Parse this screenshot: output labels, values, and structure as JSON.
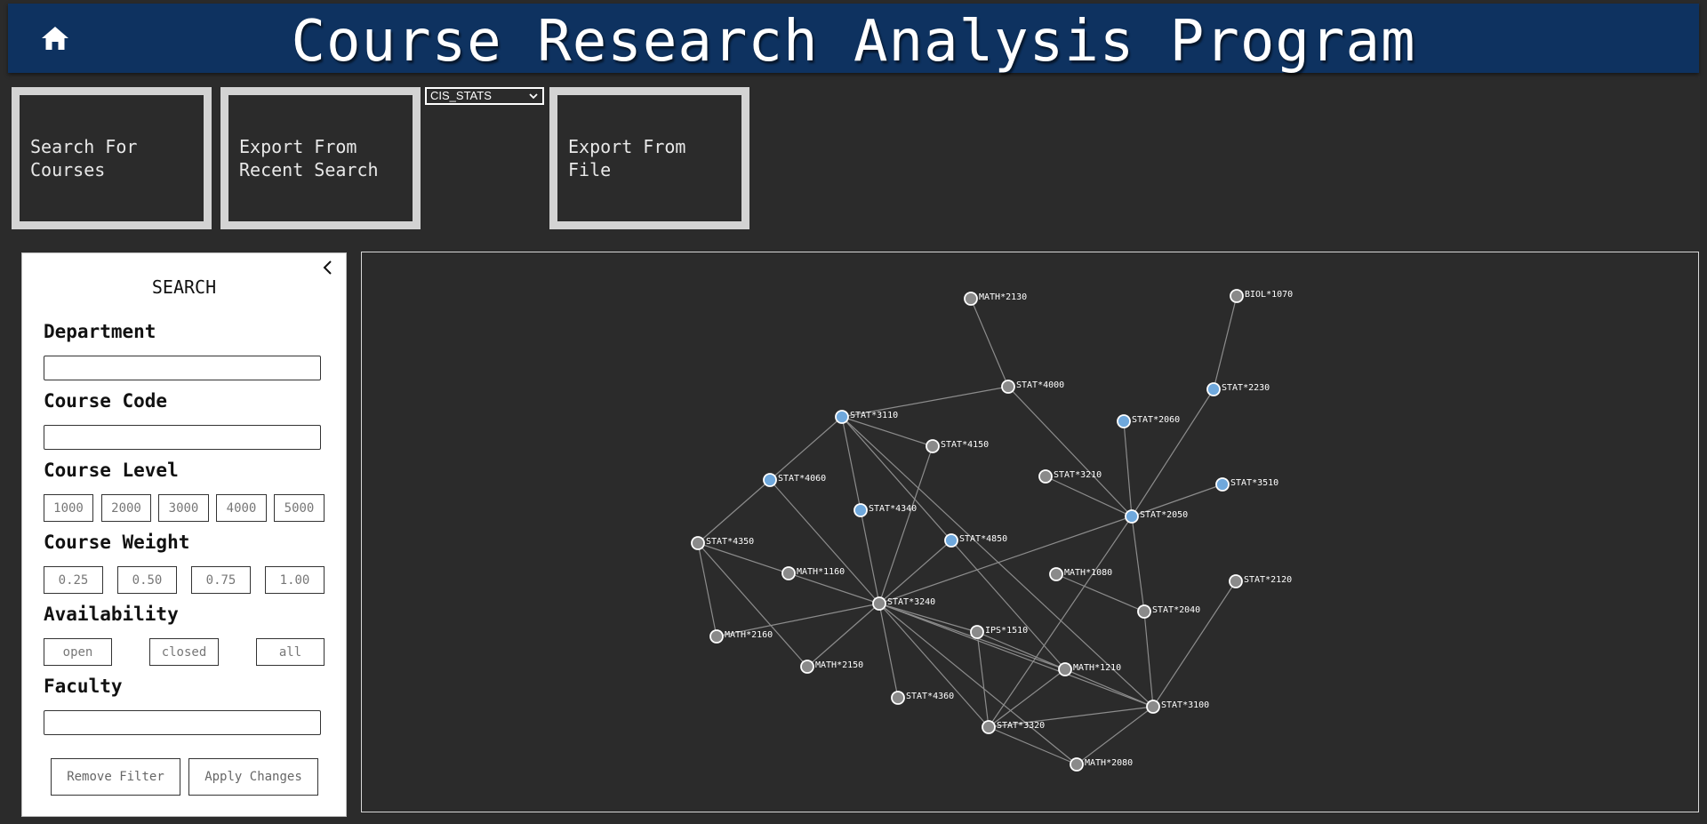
{
  "header": {
    "title": "Course Research Analysis Program",
    "home_icon": "home-icon"
  },
  "actions": {
    "search_label": "Search For\nCourses",
    "export_recent_label": "Export From\nRecent Search",
    "export_file_label": "Export From\nFile",
    "database_select": "CIS_STATS"
  },
  "search_panel": {
    "title": "SEARCH",
    "department_label": "Department",
    "department_value": "",
    "course_code_label": "Course Code",
    "course_code_value": "",
    "course_level_label": "Course Level",
    "levels": [
      "1000",
      "2000",
      "3000",
      "4000",
      "5000"
    ],
    "course_weight_label": "Course Weight",
    "weights": [
      "0.25",
      "0.50",
      "0.75",
      "1.00"
    ],
    "availability_label": "Availability",
    "availability": [
      "open",
      "closed",
      "all"
    ],
    "faculty_label": "Faculty",
    "faculty_value": "",
    "remove_filter_label": "Remove Filter",
    "apply_changes_label": "Apply Changes"
  },
  "graph": {
    "colors": {
      "selected": "#6fa8dc",
      "default": "#8a8a8a",
      "edge": "#8c8c8c",
      "stroke": "#ffffff"
    },
    "nodes": [
      {
        "id": "MATH*2130",
        "selected": false
      },
      {
        "id": "BIOL*1070",
        "selected": false
      },
      {
        "id": "STAT*4000",
        "selected": false
      },
      {
        "id": "STAT*2230",
        "selected": true
      },
      {
        "id": "STAT*3110",
        "selected": true
      },
      {
        "id": "STAT*2060",
        "selected": true
      },
      {
        "id": "STAT*4150",
        "selected": false
      },
      {
        "id": "STAT*4060",
        "selected": true
      },
      {
        "id": "STAT*3210",
        "selected": false
      },
      {
        "id": "STAT*3510",
        "selected": true
      },
      {
        "id": "STAT*4340",
        "selected": true
      },
      {
        "id": "STAT*2050",
        "selected": true
      },
      {
        "id": "STAT*4850",
        "selected": true
      },
      {
        "id": "STAT*4350",
        "selected": false
      },
      {
        "id": "MATH*1160",
        "selected": false
      },
      {
        "id": "MATH*1080",
        "selected": false
      },
      {
        "id": "STAT*2120",
        "selected": false
      },
      {
        "id": "STAT*3240",
        "selected": false
      },
      {
        "id": "STAT*2040",
        "selected": false
      },
      {
        "id": "MATH*2160",
        "selected": false
      },
      {
        "id": "IPS*1510",
        "selected": false
      },
      {
        "id": "MATH*2150",
        "selected": false
      },
      {
        "id": "MATH*1210",
        "selected": false
      },
      {
        "id": "STAT*4360",
        "selected": false
      },
      {
        "id": "STAT*3100",
        "selected": false
      },
      {
        "id": "STAT*3320",
        "selected": false
      },
      {
        "id": "MATH*2080",
        "selected": false
      }
    ],
    "edges": [
      [
        "MATH*2130",
        "STAT*4000"
      ],
      [
        "BIOL*1070",
        "STAT*2230"
      ],
      [
        "STAT*4000",
        "STAT*3110"
      ],
      [
        "STAT*4000",
        "STAT*2050"
      ],
      [
        "STAT*2230",
        "STAT*2050"
      ],
      [
        "STAT*2060",
        "STAT*2050"
      ],
      [
        "STAT*3210",
        "STAT*2050"
      ],
      [
        "STAT*3510",
        "STAT*2050"
      ],
      [
        "STAT*3110",
        "STAT*4150"
      ],
      [
        "STAT*3110",
        "STAT*4060"
      ],
      [
        "STAT*3110",
        "STAT*4340"
      ],
      [
        "STAT*3110",
        "STAT*3100"
      ],
      [
        "STAT*3110",
        "MATH*1210"
      ],
      [
        "STAT*4150",
        "STAT*3240"
      ],
      [
        "STAT*4060",
        "STAT*4350"
      ],
      [
        "STAT*4060",
        "STAT*3240"
      ],
      [
        "STAT*4340",
        "STAT*3240"
      ],
      [
        "STAT*4850",
        "STAT*3240"
      ],
      [
        "STAT*4350",
        "MATH*1160"
      ],
      [
        "STAT*4350",
        "MATH*2160"
      ],
      [
        "STAT*4350",
        "MATH*2150"
      ],
      [
        "MATH*1160",
        "STAT*3240"
      ],
      [
        "MATH*2160",
        "STAT*3240"
      ],
      [
        "MATH*2150",
        "STAT*3240"
      ],
      [
        "STAT*4360",
        "STAT*3240"
      ],
      [
        "STAT*3240",
        "STAT*2050"
      ],
      [
        "STAT*3240",
        "IPS*1510"
      ],
      [
        "STAT*3240",
        "MATH*1210"
      ],
      [
        "STAT*3240",
        "STAT*3100"
      ],
      [
        "STAT*3240",
        "STAT*3320"
      ],
      [
        "STAT*3240",
        "MATH*2080"
      ],
      [
        "STAT*2050",
        "STAT*2040"
      ],
      [
        "STAT*2050",
        "STAT*3320"
      ],
      [
        "MATH*1080",
        "STAT*2040"
      ],
      [
        "STAT*2040",
        "STAT*3100"
      ],
      [
        "STAT*2120",
        "STAT*3100"
      ],
      [
        "IPS*1510",
        "STAT*3100"
      ],
      [
        "IPS*1510",
        "STAT*3320"
      ],
      [
        "MATH*1210",
        "STAT*3320"
      ],
      [
        "STAT*3320",
        "STAT*3100"
      ],
      [
        "STAT*3320",
        "MATH*2080"
      ],
      [
        "MATH*2080",
        "STAT*3100"
      ]
    ]
  }
}
